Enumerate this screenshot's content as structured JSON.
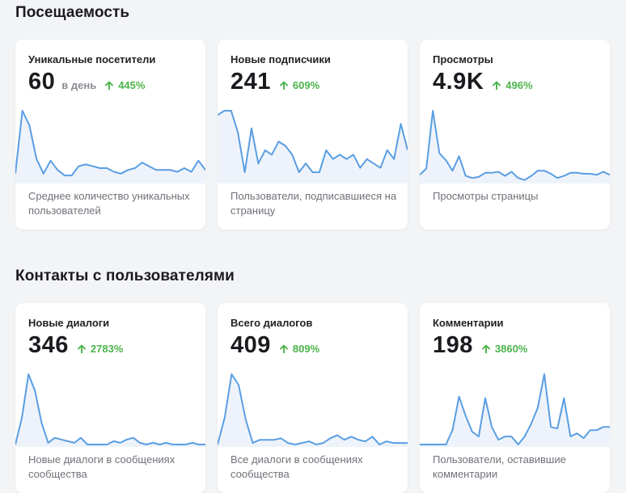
{
  "sections": [
    {
      "title": "Посещаемость",
      "cards": [
        {
          "title": "Уникальные посетители",
          "value": "60",
          "unit": "в день",
          "growth": "445%",
          "description": "Среднее количество уникальных пользователей",
          "series": [
            4,
            38,
            30,
            12,
            4,
            11,
            6,
            3,
            3,
            8,
            9,
            8,
            7,
            7,
            5,
            4,
            6,
            7,
            10,
            8,
            6,
            6,
            6,
            5,
            7,
            5,
            11,
            6
          ]
        },
        {
          "title": "Новые подписчики",
          "value": "241",
          "growth": "609%",
          "description": "Пользователи, подписавшиеся на страницу",
          "series": [
            15,
            16,
            16,
            11,
            2,
            12,
            4,
            7,
            6,
            9,
            8,
            6,
            2,
            4,
            2,
            2,
            7,
            5,
            6,
            5,
            6,
            3,
            5,
            4,
            3,
            7,
            5,
            13,
            7
          ]
        },
        {
          "title": "Просмотры",
          "value": "4.9K",
          "growth": "496%",
          "description": "Просмотры страницы",
          "series": [
            6,
            12,
            68,
            27,
            20,
            10,
            24,
            5,
            3,
            4,
            8,
            8,
            9,
            5,
            9,
            3,
            1,
            5,
            10,
            10,
            7,
            3,
            5,
            8,
            8,
            7,
            7,
            6,
            9,
            6
          ]
        }
      ]
    },
    {
      "title": "Контакты с пользователями",
      "cards": [
        {
          "title": "Новые диалоги",
          "value": "346",
          "growth": "2783%",
          "description": "Новые диалоги в сообщениях сообщества",
          "series": [
            0,
            16,
            42,
            32,
            13,
            1,
            4,
            3,
            2,
            1,
            4,
            0,
            0,
            0,
            0,
            2,
            1,
            3,
            4,
            1,
            0,
            1,
            0,
            1,
            0,
            0,
            0,
            1,
            0,
            0
          ]
        },
        {
          "title": "Всего диалогов",
          "value": "409",
          "growth": "809%",
          "description": "Все диалоги в сообщениях сообщества",
          "series": [
            0,
            17,
            45,
            38,
            16,
            1,
            3,
            3,
            3,
            4,
            1,
            0,
            1,
            2,
            0,
            1,
            4,
            6,
            3,
            5,
            3,
            2,
            5,
            0,
            2,
            1,
            1,
            1
          ]
        },
        {
          "title": "Комментарии",
          "value": "198",
          "growth": "3860%",
          "description": "Пользователи, оставившие комментарии",
          "series": [
            0,
            0,
            0,
            0,
            0,
            9,
            30,
            18,
            8,
            5,
            29,
            11,
            3,
            5,
            5,
            0,
            5,
            13,
            23,
            44,
            11,
            10,
            29,
            5,
            7,
            4,
            9,
            9,
            11,
            11
          ]
        }
      ]
    }
  ],
  "colors": {
    "line": "#5a9ee3",
    "fill": "#eef3fb",
    "growth": "#4bb34b"
  }
}
